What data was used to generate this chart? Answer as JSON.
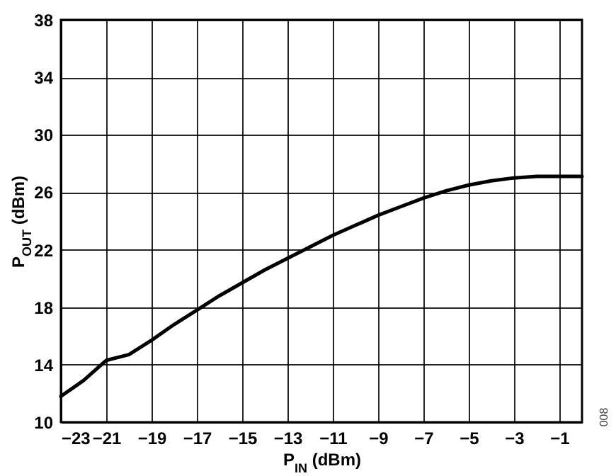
{
  "chart_data": {
    "type": "line",
    "xlabel": "P$_{IN}$ (dBm)",
    "ylabel": "P$_{OUT}$ (dBm)",
    "x": [
      -23,
      -22,
      -21,
      -20,
      -19,
      -18,
      -17,
      -16,
      -15,
      -14,
      -13,
      -12,
      -11,
      -10,
      -9,
      -8,
      -7,
      -6,
      -5,
      -4,
      -3,
      -2,
      -1,
      0
    ],
    "series": [
      {
        "color": "#000000",
        "values": [
          11.8,
          12.9,
          14.3,
          14.7,
          15.7,
          16.8,
          17.8,
          18.8,
          19.7,
          20.6,
          21.4,
          22.2,
          23.0,
          23.7,
          24.4,
          25.0,
          25.6,
          26.1,
          26.5,
          26.8,
          27.0,
          27.1,
          27.1,
          27.1
        ]
      }
    ],
    "xlim": [
      -23,
      0
    ],
    "xticks": [
      -23,
      -21,
      -19,
      -17,
      -15,
      -13,
      -11,
      -9,
      -7,
      -5,
      -3,
      -1
    ],
    "ylim": [
      10,
      38
    ],
    "yticks": [
      10,
      14,
      18,
      22,
      26,
      30,
      34,
      38
    ],
    "grid": true,
    "marker": "none",
    "line_style": "solid",
    "annotations": [
      "008"
    ]
  }
}
